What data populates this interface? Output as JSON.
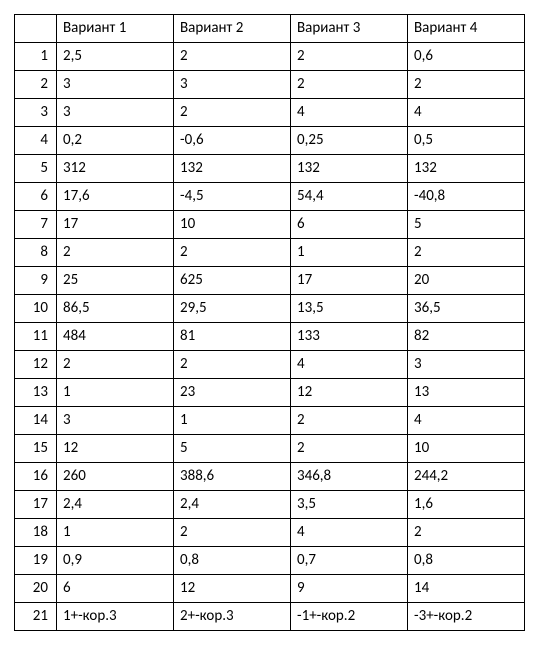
{
  "table": {
    "columns": [
      "",
      "Вариант 1",
      "Вариант 2",
      "Вариант 3",
      "Вариант 4"
    ],
    "rows": [
      [
        "1",
        "2,5",
        "2",
        "2",
        "0,6"
      ],
      [
        "2",
        "3",
        "3",
        "2",
        "2"
      ],
      [
        "3",
        "3",
        "2",
        "4",
        "4"
      ],
      [
        "4",
        "0,2",
        "-0,6",
        "0,25",
        "0,5"
      ],
      [
        "5",
        "312",
        "132",
        "132",
        "132"
      ],
      [
        "6",
        "17,6",
        "-4,5",
        "54,4",
        "-40,8"
      ],
      [
        "7",
        "17",
        "10",
        "6",
        "5"
      ],
      [
        "8",
        "2",
        "2",
        "1",
        "2"
      ],
      [
        "9",
        "25",
        "625",
        "17",
        "20"
      ],
      [
        "10",
        "86,5",
        "29,5",
        "13,5",
        "36,5"
      ],
      [
        "11",
        "484",
        "81",
        "133",
        "82"
      ],
      [
        "12",
        "2",
        "2",
        "4",
        "3"
      ],
      [
        "13",
        "1",
        "23",
        "12",
        "13"
      ],
      [
        "14",
        "3",
        "1",
        "2",
        "4"
      ],
      [
        "15",
        "12",
        "5",
        "2",
        "10"
      ],
      [
        "16",
        "260",
        "388,6",
        "346,8",
        "244,2"
      ],
      [
        "17",
        "2,4",
        "2,4",
        "3,5",
        "1,6"
      ],
      [
        "18",
        "1",
        "2",
        "4",
        "2"
      ],
      [
        "19",
        "0,9",
        "0,8",
        "0,7",
        "0,8"
      ],
      [
        "20",
        "6",
        "12",
        "9",
        "14"
      ],
      [
        "21",
        "1+-кор.3",
        "2+-кор.3",
        "-1+-кор.2",
        "-3+-кор.2"
      ]
    ]
  }
}
